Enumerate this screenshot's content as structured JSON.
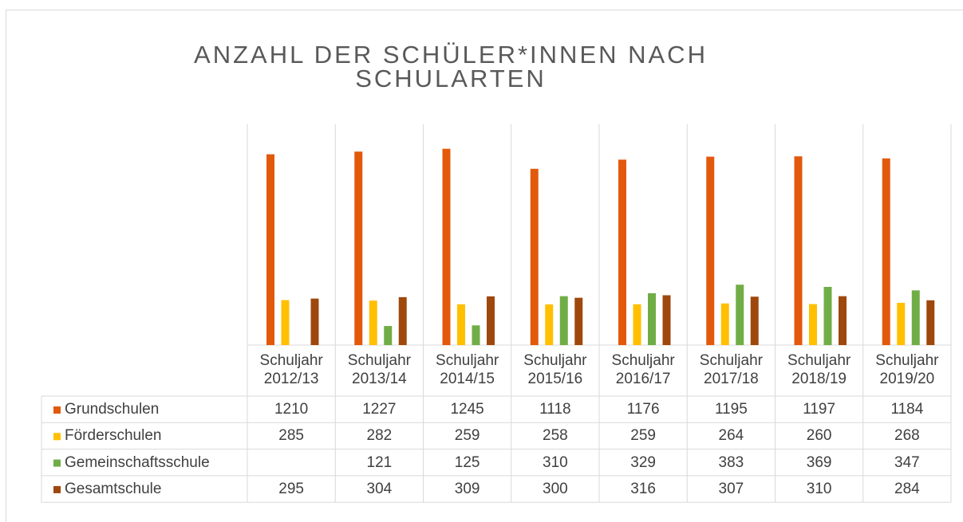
{
  "chart_data": {
    "type": "bar",
    "title": "ANZAHL DER SCHÜLER*INNEN NACH SCHULARTEN",
    "categories": [
      "Schuljahr 2012/13",
      "Schuljahr 2013/14",
      "Schuljahr 2014/15",
      "Schuljahr 2015/16",
      "Schuljahr 2016/17",
      "Schuljahr 2017/18",
      "Schuljahr 2018/19",
      "Schuljahr 2019/20"
    ],
    "series": [
      {
        "name": "Grundschulen",
        "color": "#e2590c",
        "values": [
          1210,
          1227,
          1245,
          1118,
          1176,
          1195,
          1197,
          1184
        ]
      },
      {
        "name": "Förderschulen",
        "color": "#ffc000",
        "values": [
          285,
          282,
          259,
          258,
          259,
          264,
          260,
          268
        ]
      },
      {
        "name": "Gemeinschaftsschule",
        "color": "#70ad47",
        "values": [
          null,
          121,
          125,
          310,
          329,
          383,
          369,
          347
        ]
      },
      {
        "name": "Gesamtschule",
        "color": "#9e480e",
        "values": [
          295,
          304,
          309,
          300,
          316,
          307,
          310,
          284
        ]
      }
    ],
    "ylim": [
      0,
      1400
    ],
    "data_table": true
  }
}
